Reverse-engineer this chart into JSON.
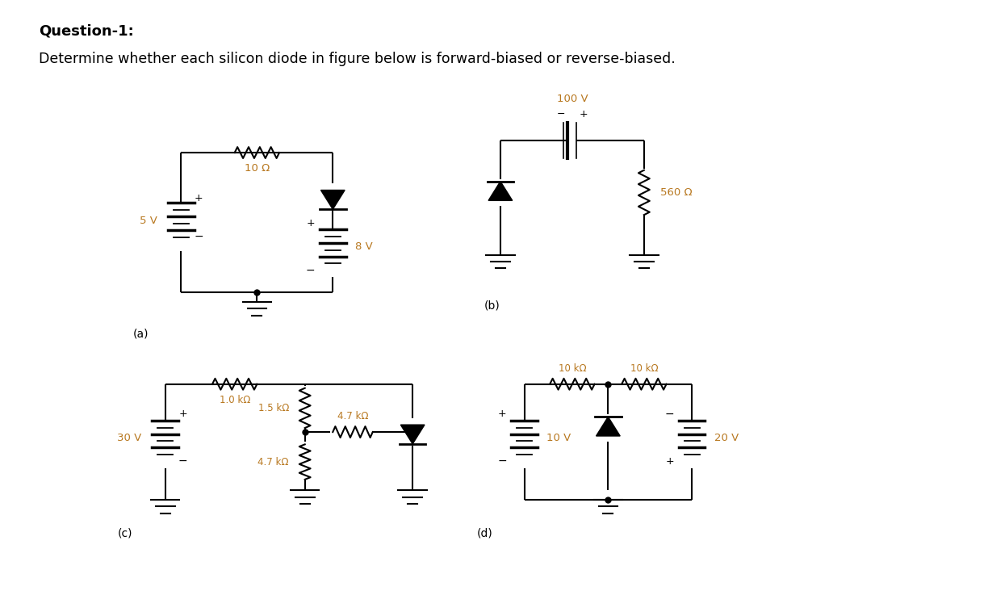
{
  "title_bold": "Question-1:",
  "title_normal": "Determine whether each silicon diode in figure below is forward-biased or reverse-biased.",
  "bg_color": "#ffffff",
  "lc": "#000000",
  "rc": "#b87820",
  "tc": "#000000",
  "fig_w": 12.24,
  "fig_h": 7.32,
  "label_a": "(a)",
  "label_b": "(b)",
  "label_c": "(c)",
  "label_d": "(d)",
  "lw": 1.5
}
